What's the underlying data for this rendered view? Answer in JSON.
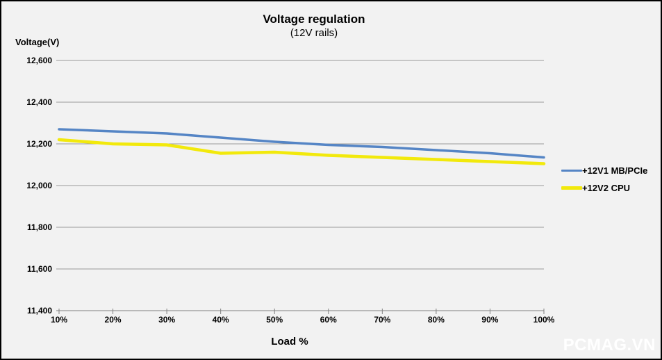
{
  "watermark": "PCMAG.VN",
  "colors": {
    "background": "#F2F2F2",
    "border": "#000000",
    "gridline": "#9B9B9B",
    "axis_line": "#808080",
    "text": "#000000",
    "watermark": "#FFFFFF",
    "series_blue": "#5585C5",
    "series_yellow": "#F2E90C"
  },
  "chart_data": {
    "type": "line",
    "title": "Voltage regulation",
    "subtitle": "(12V rails)",
    "xlabel": "Load %",
    "ylabel": "Voltage(V)",
    "categories": [
      "10%",
      "20%",
      "30%",
      "40%",
      "50%",
      "60%",
      "70%",
      "80%",
      "90%",
      "100%"
    ],
    "ylim": [
      11400,
      12600
    ],
    "yticks": [
      11400,
      11600,
      11800,
      12000,
      12200,
      12400,
      12600
    ],
    "ytick_labels": [
      "11,400",
      "11,600",
      "11,800",
      "12,000",
      "12,200",
      "12,400",
      "12,600"
    ],
    "grid": "horizontal",
    "legend_position": "right",
    "series": [
      {
        "name": "+12V1 MB/PCIe",
        "color": "#5585C5",
        "values": [
          12270,
          12260,
          12250,
          12230,
          12210,
          12195,
          12185,
          12170,
          12155,
          12135
        ]
      },
      {
        "name": "+12V2 CPU",
        "color": "#F2E90C",
        "values": [
          12220,
          12200,
          12195,
          12155,
          12160,
          12145,
          12135,
          12125,
          12115,
          12105
        ]
      }
    ]
  }
}
